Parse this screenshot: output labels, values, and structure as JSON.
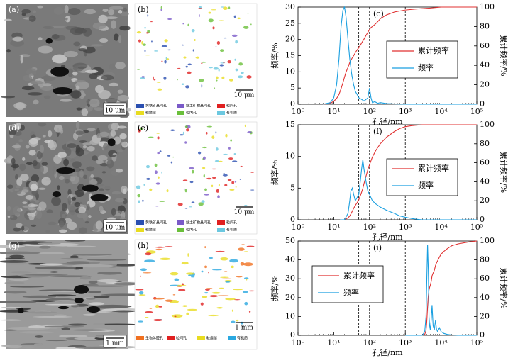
{
  "panels": [
    {
      "image_label": "(a)",
      "scale_bar": "10 μm",
      "map_label": "(b)",
      "map_scale_bar": "10 μm",
      "map_legend": [
        {
          "name": "黄铁矿晶间孔",
          "color": "#2a4fb0"
        },
        {
          "name": "黏土矿物晶间孔",
          "color": "#7a5ac8"
        },
        {
          "name": "粒间孔",
          "color": "#e02020"
        },
        {
          "name": "粒缘缝",
          "color": "#e8dc20"
        },
        {
          "name": "粒内孔",
          "color": "#6abf3a"
        },
        {
          "name": "有机质",
          "color": "#6cc8e0"
        }
      ]
    },
    {
      "image_label": "(d)",
      "scale_bar": "10 μm",
      "map_label": "(e)",
      "map_scale_bar": "10 μm",
      "map_legend": [
        {
          "name": "黄铁矿晶间孔",
          "color": "#2a4fb0"
        },
        {
          "name": "黏土矿物晶间孔",
          "color": "#7a5ac8"
        },
        {
          "name": "粒间孔",
          "color": "#e02020"
        },
        {
          "name": "粒缘缝",
          "color": "#e8dc20"
        },
        {
          "name": "粒内孔",
          "color": "#6abf3a"
        },
        {
          "name": "有机质",
          "color": "#6cc8e0"
        }
      ]
    },
    {
      "image_label": "(g)",
      "scale_bar": "1 mm",
      "map_label": "(h)",
      "map_scale_bar": "1 mm",
      "map_legend": [
        {
          "name": "生物体腔孔",
          "color": "#f07020"
        },
        {
          "name": "粒间孔",
          "color": "#e02020"
        },
        {
          "name": "粒缘缝",
          "color": "#e8dc20"
        },
        {
          "name": "有机质",
          "color": "#2aa8e0"
        }
      ]
    }
  ],
  "chart_data": [
    {
      "type": "line",
      "panel_label": "(c)",
      "x_label": "孔径/nm",
      "y_label": "频率/%",
      "y2_label": "累计频率/%",
      "x_scale": "log",
      "xlim": [
        1,
        100000
      ],
      "xticks": [
        {
          "value": 1,
          "label": "10⁰"
        },
        {
          "value": 10,
          "label": "10¹"
        },
        {
          "value": 100,
          "label": "10²"
        },
        {
          "value": 1000,
          "label": "10³"
        },
        {
          "value": 10000,
          "label": "10⁴"
        },
        {
          "value": 100000,
          "label": "10⁵"
        }
      ],
      "ylim": [
        0,
        30
      ],
      "yticks": [
        0,
        5,
        10,
        15,
        20,
        25,
        30
      ],
      "y2lim": [
        0,
        100
      ],
      "y2ticks": [
        0,
        20,
        40,
        60,
        80,
        100
      ],
      "reference_lines": [
        50,
        100,
        1000,
        10000
      ],
      "legend_position": "right",
      "x": [
        5,
        8,
        10,
        12,
        14,
        16,
        18,
        20,
        22,
        25,
        28,
        32,
        36,
        40,
        45,
        50,
        60,
        70,
        80,
        90,
        100,
        110,
        120,
        140,
        170,
        200,
        300,
        500,
        1000,
        2000,
        5000,
        10000,
        30000,
        100000
      ],
      "series": [
        {
          "name": "累计频率",
          "color": "#e03030",
          "axis": "y2",
          "values": [
            0,
            1,
            3,
            6,
            10,
            16,
            22,
            28,
            33,
            38,
            43,
            47,
            50,
            53,
            56,
            58,
            63,
            67,
            71,
            74,
            77,
            79,
            80,
            82,
            85,
            88,
            92,
            95,
            97,
            98,
            99,
            100,
            100,
            100
          ]
        },
        {
          "name": "频率",
          "color": "#1a9fe0",
          "values": [
            0,
            0.5,
            2,
            6,
            14,
            24,
            29,
            30,
            27,
            20,
            14,
            9,
            6,
            4,
            3,
            2,
            1.5,
            1,
            1.5,
            2,
            5,
            2,
            0.5,
            0.8,
            0.3,
            0.5,
            0.2,
            0.1,
            0,
            0,
            0,
            0,
            0,
            0
          ]
        }
      ]
    },
    {
      "type": "line",
      "panel_label": "(f)",
      "x_label": "孔径/nm",
      "y_label": "频率/%",
      "y2_label": "累计频率/%",
      "x_scale": "log",
      "xlim": [
        1,
        100000
      ],
      "xticks": [
        {
          "value": 1,
          "label": "10⁰"
        },
        {
          "value": 10,
          "label": "10¹"
        },
        {
          "value": 100,
          "label": "10²"
        },
        {
          "value": 1000,
          "label": "10³"
        },
        {
          "value": 10000,
          "label": "10⁴"
        },
        {
          "value": 100000,
          "label": "10⁵"
        }
      ],
      "ylim": [
        0,
        15
      ],
      "yticks": [
        0,
        5,
        10,
        15
      ],
      "y2lim": [
        0,
        100
      ],
      "y2ticks": [
        0,
        20,
        40,
        60,
        80,
        100
      ],
      "reference_lines": [
        50,
        100,
        1000,
        10000
      ],
      "legend_position": "right",
      "x": [
        15,
        20,
        25,
        28,
        30,
        33,
        36,
        40,
        45,
        50,
        55,
        60,
        65,
        70,
        75,
        80,
        90,
        100,
        120,
        150,
        200,
        300,
        500,
        700,
        1000,
        1500,
        2000,
        3000,
        10000,
        100000
      ],
      "series": [
        {
          "name": "累计频率",
          "color": "#e03030",
          "axis": "y2",
          "values": [
            0,
            0,
            2,
            4,
            6,
            9,
            12,
            15,
            18,
            21,
            25,
            29,
            33,
            38,
            42,
            46,
            53,
            58,
            66,
            73,
            80,
            87,
            93,
            96,
            98,
            99,
            99.5,
            100,
            100,
            100
          ]
        },
        {
          "name": "频率",
          "color": "#1a9fe0",
          "values": [
            0,
            0,
            1,
            3,
            4.5,
            5,
            4,
            3,
            3.5,
            4,
            6,
            8,
            9.5,
            8,
            7,
            6,
            4.5,
            4,
            3,
            2.5,
            2,
            1.5,
            1,
            0.6,
            0.4,
            0.2,
            0.1,
            0,
            0,
            0
          ]
        }
      ]
    },
    {
      "type": "line",
      "panel_label": "(i)",
      "x_label": "孔径/nm",
      "y_label": "频率/%",
      "y2_label": "累计频率/%",
      "x_scale": "log",
      "xlim": [
        1,
        100000
      ],
      "xticks": [
        {
          "value": 1,
          "label": "10⁰"
        },
        {
          "value": 10,
          "label": "10¹"
        },
        {
          "value": 100,
          "label": "10²"
        },
        {
          "value": 1000,
          "label": "10³"
        },
        {
          "value": 10000,
          "label": "10⁴"
        },
        {
          "value": 100000,
          "label": "10⁵"
        }
      ],
      "ylim": [
        0,
        50
      ],
      "yticks": [
        0,
        10,
        20,
        30,
        40,
        50
      ],
      "y2lim": [
        0,
        100
      ],
      "y2ticks": [
        0,
        20,
        40,
        60,
        80,
        100
      ],
      "reference_lines": [
        50,
        100,
        1000,
        10000
      ],
      "legend_position": "left",
      "x": [
        1000,
        3000,
        3500,
        3800,
        4000,
        4200,
        4400,
        4600,
        4800,
        5000,
        5300,
        5600,
        6000,
        6500,
        7000,
        7500,
        8000,
        9000,
        10000,
        12000,
        15000,
        20000,
        30000,
        60000,
        100000
      ],
      "series": [
        {
          "name": "累计频率",
          "color": "#e03030",
          "axis": "y2",
          "values": [
            0,
            0,
            1,
            5,
            15,
            30,
            42,
            48,
            51,
            53,
            57,
            63,
            66,
            69,
            74,
            77,
            79,
            83,
            86,
            89,
            92,
            95,
            97,
            99,
            100
          ]
        },
        {
          "name": "频率",
          "color": "#1a9fe0",
          "values": [
            0,
            0,
            2,
            10,
            30,
            48,
            35,
            10,
            5,
            3,
            8,
            16,
            5,
            3,
            8,
            3,
            2,
            4,
            2,
            1,
            0.5,
            0.2,
            0,
            0,
            0
          ]
        }
      ]
    }
  ]
}
